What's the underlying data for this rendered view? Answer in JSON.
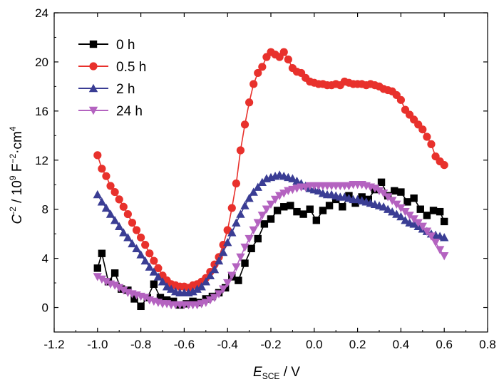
{
  "chart_data": {
    "type": "line",
    "title": "",
    "xlabel": {
      "main": "E",
      "sub": "SCE",
      "rest": " / V"
    },
    "ylabel": {
      "c": "C",
      "exp1": "-2",
      "mid": " / 10",
      "exp2": "9",
      "unit": " F",
      "exp3": "−2",
      "unit2": "·cm",
      "exp4": "4"
    },
    "xlim": [
      -1.2,
      0.8
    ],
    "ylim": [
      -2,
      24
    ],
    "xticks": [
      -1.2,
      -1.0,
      -0.8,
      -0.6,
      -0.4,
      -0.2,
      0.0,
      0.2,
      0.4,
      0.6,
      0.8
    ],
    "xtick_labels": [
      "-1.2",
      "-1.0",
      "-0.8",
      "-0.6",
      "-0.4",
      "-0.2",
      "0.0",
      "0.2",
      "0.4",
      "0.6",
      "0.8"
    ],
    "yticks": [
      0,
      4,
      8,
      12,
      16,
      20,
      24
    ],
    "ytick_labels": [
      "0",
      "4",
      "8",
      "12",
      "16",
      "20",
      "24"
    ],
    "legend_position": "top-left",
    "series": [
      {
        "name": "0 h",
        "color": "#000000",
        "marker": "square",
        "x": [
          -1.0,
          -0.98,
          -0.95,
          -0.92,
          -0.89,
          -0.86,
          -0.83,
          -0.8,
          -0.77,
          -0.74,
          -0.71,
          -0.68,
          -0.65,
          -0.62,
          -0.59,
          -0.56,
          -0.53,
          -0.5,
          -0.47,
          -0.44,
          -0.41,
          -0.38,
          -0.35,
          -0.32,
          -0.29,
          -0.26,
          -0.23,
          -0.2,
          -0.17,
          -0.14,
          -0.11,
          -0.08,
          -0.05,
          -0.02,
          0.01,
          0.04,
          0.07,
          0.1,
          0.13,
          0.16,
          0.19,
          0.22,
          0.25,
          0.28,
          0.31,
          0.34,
          0.37,
          0.4,
          0.43,
          0.46,
          0.49,
          0.52,
          0.55,
          0.58,
          0.6
        ],
        "y": [
          3.2,
          4.4,
          2.1,
          2.8,
          1.5,
          1.4,
          0.7,
          0.1,
          0.8,
          1.9,
          0.8,
          0.6,
          0.5,
          0.2,
          0.3,
          0.5,
          0.4,
          0.7,
          0.9,
          1.2,
          1.6,
          2.5,
          2.2,
          3.6,
          4.8,
          5.6,
          6.8,
          7.2,
          7.9,
          8.2,
          8.3,
          7.8,
          7.6,
          8.0,
          7.1,
          7.9,
          8.3,
          8.8,
          8.2,
          9.1,
          8.5,
          9.0,
          8.8,
          9.6,
          10.2,
          9.1,
          9.5,
          9.4,
          8.6,
          8.9,
          8.0,
          7.5,
          7.9,
          7.8,
          7.0
        ]
      },
      {
        "name": "0.5 h",
        "color": "#e8312c",
        "marker": "circle",
        "x": [
          -1.0,
          -0.98,
          -0.96,
          -0.94,
          -0.92,
          -0.9,
          -0.88,
          -0.86,
          -0.84,
          -0.82,
          -0.8,
          -0.78,
          -0.76,
          -0.74,
          -0.72,
          -0.7,
          -0.68,
          -0.66,
          -0.64,
          -0.62,
          -0.6,
          -0.58,
          -0.56,
          -0.54,
          -0.52,
          -0.5,
          -0.48,
          -0.46,
          -0.44,
          -0.42,
          -0.4,
          -0.38,
          -0.36,
          -0.34,
          -0.32,
          -0.3,
          -0.28,
          -0.26,
          -0.24,
          -0.22,
          -0.2,
          -0.18,
          -0.16,
          -0.14,
          -0.12,
          -0.1,
          -0.08,
          -0.06,
          -0.04,
          -0.02,
          0.0,
          0.02,
          0.04,
          0.06,
          0.08,
          0.1,
          0.12,
          0.14,
          0.16,
          0.18,
          0.2,
          0.22,
          0.24,
          0.26,
          0.28,
          0.3,
          0.32,
          0.34,
          0.36,
          0.38,
          0.4,
          0.42,
          0.44,
          0.46,
          0.48,
          0.5,
          0.52,
          0.54,
          0.56,
          0.58,
          0.6
        ],
        "y": [
          12.4,
          11.3,
          10.7,
          9.9,
          9.4,
          8.8,
          8.2,
          7.6,
          6.9,
          6.3,
          5.7,
          5.1,
          4.4,
          3.8,
          3.2,
          2.6,
          2.2,
          1.9,
          1.8,
          1.7,
          1.7,
          1.6,
          1.8,
          1.9,
          2.1,
          2.4,
          2.9,
          3.5,
          4.1,
          5.1,
          6.3,
          8.1,
          10.1,
          12.8,
          14.9,
          16.7,
          18.2,
          19.1,
          19.6,
          20.4,
          20.8,
          20.6,
          20.4,
          20.8,
          20.2,
          19.5,
          19.2,
          19.1,
          18.7,
          18.4,
          18.3,
          18.2,
          18.2,
          18.1,
          18.1,
          18.2,
          18.1,
          18.4,
          18.3,
          18.2,
          18.2,
          18.2,
          18.1,
          18.2,
          18.1,
          18.0,
          17.8,
          17.7,
          17.6,
          17.3,
          16.9,
          16.1,
          15.7,
          15.3,
          14.9,
          14.5,
          13.9,
          13.3,
          12.3,
          11.9,
          11.6
        ]
      },
      {
        "name": "2 h",
        "color": "#3a3d94",
        "marker": "triangle-up",
        "x": [
          -1.0,
          -0.98,
          -0.96,
          -0.94,
          -0.92,
          -0.9,
          -0.88,
          -0.86,
          -0.84,
          -0.82,
          -0.8,
          -0.78,
          -0.76,
          -0.74,
          -0.72,
          -0.7,
          -0.68,
          -0.66,
          -0.64,
          -0.62,
          -0.6,
          -0.58,
          -0.56,
          -0.54,
          -0.52,
          -0.5,
          -0.48,
          -0.46,
          -0.44,
          -0.42,
          -0.4,
          -0.38,
          -0.36,
          -0.34,
          -0.32,
          -0.3,
          -0.28,
          -0.26,
          -0.24,
          -0.22,
          -0.2,
          -0.18,
          -0.16,
          -0.14,
          -0.12,
          -0.1,
          -0.08,
          -0.06,
          -0.04,
          -0.02,
          0.0,
          0.02,
          0.04,
          0.06,
          0.08,
          0.1,
          0.12,
          0.14,
          0.16,
          0.18,
          0.2,
          0.22,
          0.24,
          0.26,
          0.28,
          0.3,
          0.32,
          0.34,
          0.36,
          0.38,
          0.4,
          0.42,
          0.44,
          0.46,
          0.48,
          0.5,
          0.52,
          0.54,
          0.56,
          0.58,
          0.6
        ],
        "y": [
          9.2,
          8.6,
          8.1,
          7.6,
          7.1,
          6.6,
          6.1,
          5.7,
          5.2,
          4.8,
          4.3,
          3.8,
          3.3,
          2.9,
          2.5,
          2.1,
          1.7,
          1.5,
          1.3,
          1.2,
          1.2,
          1.2,
          1.3,
          1.5,
          1.7,
          2.1,
          2.6,
          3.1,
          3.8,
          4.5,
          5.3,
          6.1,
          6.9,
          7.6,
          8.3,
          8.9,
          9.4,
          9.8,
          10.2,
          10.5,
          10.6,
          10.7,
          10.8,
          10.7,
          10.6,
          10.5,
          10.3,
          10.1,
          9.9,
          9.7,
          9.6,
          9.5,
          9.3,
          9.2,
          9.2,
          9.1,
          9.0,
          9.0,
          8.9,
          8.8,
          8.8,
          8.7,
          8.6,
          8.5,
          8.4,
          8.3,
          8.2,
          8.0,
          7.8,
          7.6,
          7.4,
          7.1,
          6.9,
          6.8,
          6.6,
          6.4,
          6.2,
          6.0,
          5.9,
          5.8,
          5.7
        ]
      },
      {
        "name": "24 h",
        "color": "#b463c0",
        "marker": "triangle-down",
        "x": [
          -1.0,
          -0.98,
          -0.96,
          -0.94,
          -0.92,
          -0.9,
          -0.88,
          -0.86,
          -0.84,
          -0.82,
          -0.8,
          -0.78,
          -0.76,
          -0.74,
          -0.72,
          -0.7,
          -0.68,
          -0.66,
          -0.64,
          -0.62,
          -0.6,
          -0.58,
          -0.56,
          -0.54,
          -0.52,
          -0.5,
          -0.48,
          -0.46,
          -0.44,
          -0.42,
          -0.4,
          -0.38,
          -0.36,
          -0.34,
          -0.32,
          -0.3,
          -0.28,
          -0.26,
          -0.24,
          -0.22,
          -0.2,
          -0.18,
          -0.16,
          -0.14,
          -0.12,
          -0.1,
          -0.08,
          -0.06,
          -0.04,
          -0.02,
          0.0,
          0.02,
          0.04,
          0.06,
          0.08,
          0.1,
          0.12,
          0.14,
          0.16,
          0.18,
          0.2,
          0.22,
          0.24,
          0.26,
          0.28,
          0.3,
          0.32,
          0.34,
          0.36,
          0.38,
          0.4,
          0.42,
          0.44,
          0.46,
          0.48,
          0.5,
          0.52,
          0.54,
          0.56,
          0.58,
          0.6
        ],
        "y": [
          2.5,
          2.3,
          2.1,
          1.9,
          1.8,
          1.6,
          1.4,
          1.2,
          1.1,
          1.0,
          0.9,
          0.8,
          0.6,
          0.5,
          0.4,
          0.3,
          0.3,
          0.2,
          0.2,
          0.2,
          0.2,
          0.2,
          0.2,
          0.2,
          0.3,
          0.4,
          0.6,
          0.8,
          1.1,
          1.5,
          2.0,
          2.6,
          3.3,
          4.1,
          4.9,
          5.6,
          6.3,
          6.9,
          7.5,
          8.0,
          8.4,
          8.8,
          9.1,
          9.3,
          9.5,
          9.6,
          9.7,
          9.8,
          9.8,
          9.9,
          9.9,
          9.9,
          9.9,
          9.9,
          9.9,
          9.9,
          9.9,
          9.9,
          9.9,
          10.0,
          10.0,
          10.0,
          9.9,
          9.8,
          9.7,
          9.5,
          9.3,
          9.0,
          8.7,
          8.4,
          8.1,
          7.8,
          7.5,
          7.2,
          6.9,
          6.6,
          6.2,
          5.8,
          5.3,
          4.7,
          4.2
        ]
      }
    ]
  }
}
